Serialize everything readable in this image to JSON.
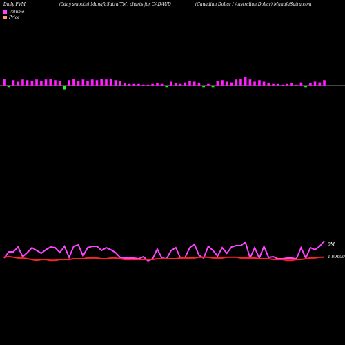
{
  "header": {
    "left": "Daily PVM",
    "mid": "(5day smooth) MunafaSutra(TM) charts for CADAUD",
    "right": "(Canadian Dollar / Australian Dollar) MunafaSutra.com"
  },
  "legend": [
    {
      "label": "Volume",
      "color": "#ff44ff"
    },
    {
      "label": "Price",
      "color": "#ff9977"
    }
  ],
  "colors": {
    "volume_up": "#ff22ff",
    "volume_down": "#33ee33",
    "price": "#ff2222",
    "volume_line": "#ff44ff"
  },
  "chart_data": [
    {
      "type": "bar",
      "name": "volume-bars",
      "values": [
        9,
        -2,
        7,
        5,
        8,
        7,
        6,
        8,
        6,
        8,
        9,
        7,
        6,
        -5,
        7,
        9,
        6,
        8,
        6,
        8,
        7,
        9,
        8,
        9,
        7,
        6,
        3,
        2,
        2,
        2,
        1,
        1,
        2,
        3,
        2,
        -2,
        5,
        3,
        2,
        4,
        6,
        5,
        3,
        -2,
        2,
        -2,
        6,
        7,
        5,
        4,
        8,
        9,
        11,
        8,
        5,
        7,
        5,
        3,
        2,
        2,
        1,
        2,
        3,
        1,
        4,
        -2,
        3,
        5,
        4,
        7
      ],
      "ylim": [
        -8,
        14
      ]
    },
    {
      "type": "line",
      "name": "price-volume-lines",
      "y_labels": [
        "0M",
        "1.09600"
      ],
      "series": [
        {
          "key": "volume",
          "values": [
            3,
            12,
            12,
            19,
            5,
            11,
            18,
            14,
            10,
            15,
            19,
            18,
            11,
            20,
            4,
            20,
            22,
            6,
            18,
            20,
            20,
            14,
            18,
            15,
            11,
            4,
            3,
            3,
            3,
            2,
            5,
            -1,
            2,
            16,
            3,
            2,
            14,
            18,
            3,
            4,
            18,
            23,
            7,
            3,
            20,
            14,
            6,
            18,
            10,
            19,
            21,
            21,
            26,
            3,
            18,
            3,
            20,
            4,
            5,
            2,
            2,
            3,
            3,
            2,
            18,
            3,
            18,
            15,
            20,
            28
          ]
        },
        {
          "key": "price",
          "values": [
            2,
            3,
            2,
            1,
            1,
            0,
            -1,
            -2,
            -1,
            -1,
            -2,
            -2,
            -1,
            -1,
            -1,
            0,
            0,
            0,
            1,
            1,
            1,
            0,
            0,
            1,
            1,
            0,
            -1,
            -1,
            -1,
            -1,
            -1,
            -1,
            -1,
            0,
            0,
            0,
            0,
            0,
            1,
            1,
            1,
            1,
            2,
            2,
            2,
            1,
            1,
            1,
            2,
            2,
            2,
            1,
            1,
            1,
            1,
            0,
            0,
            0,
            -1,
            -1,
            -1,
            -2,
            -2,
            -1,
            -1,
            0,
            1,
            1,
            2,
            2
          ]
        }
      ]
    }
  ]
}
